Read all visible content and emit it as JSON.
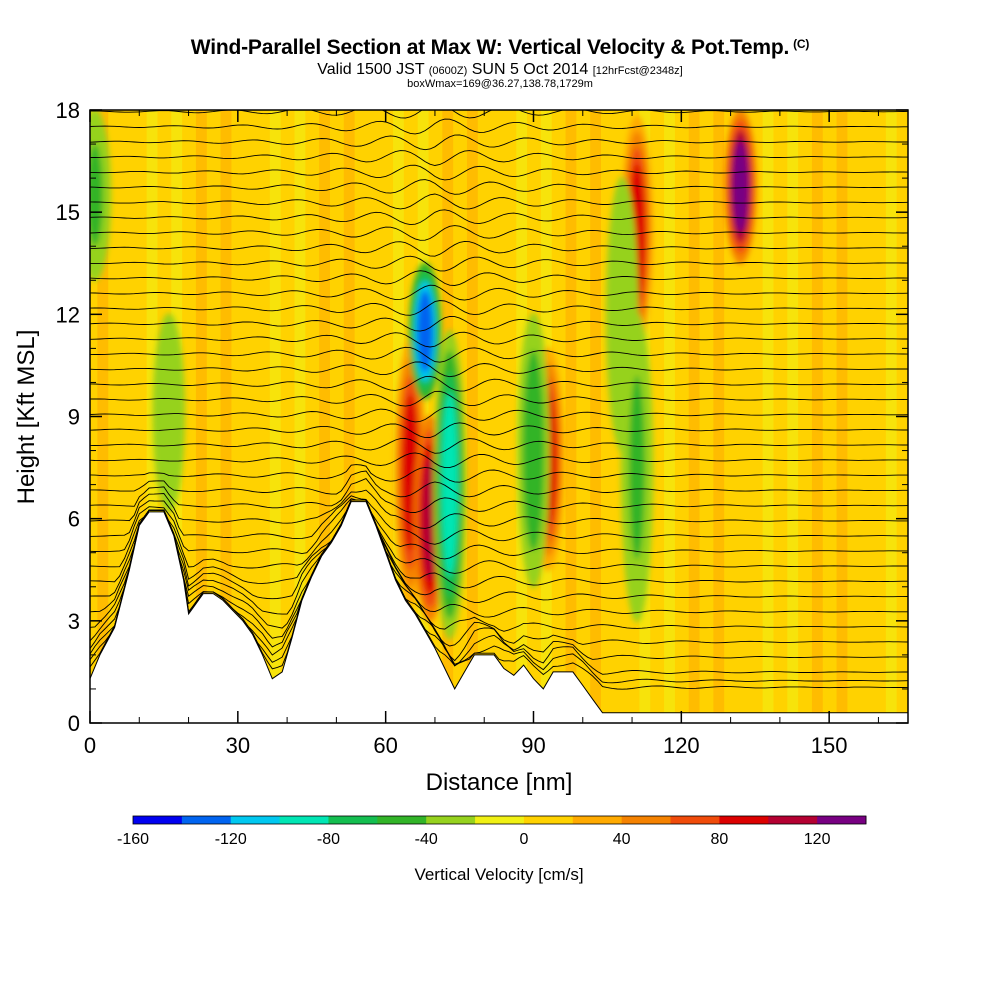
{
  "header": {
    "title": "Wind-Parallel Section at Max W: Vertical Velocity & Pot.Temp.",
    "title_mark": "(C)",
    "valid_main": "Valid 1500 JST",
    "valid_utc": "(0600Z)",
    "valid_date": "SUN 5 Oct 2014",
    "forecast": "[12hrFcst@2348z]",
    "box_info": "boxWmax=169@36.27,138.78,1729m"
  },
  "chart_data": {
    "type": "heatmap",
    "xlabel": "Distance [nm]",
    "ylabel": "Height [Kft MSL]",
    "xlim": [
      0,
      166
    ],
    "ylim": [
      0,
      18
    ],
    "x_ticks": [
      "0",
      "30",
      "60",
      "90",
      "120",
      "150"
    ],
    "y_ticks": [
      "0",
      "3",
      "6",
      "9",
      "12",
      "15",
      "18"
    ],
    "colorbar": {
      "title": "Vertical Velocity [cm/s]",
      "range": [
        -160,
        140
      ],
      "tick_labels": [
        "-160",
        "-120",
        "-80",
        "-40",
        "0",
        "40",
        "80",
        "120"
      ],
      "colors": [
        "#0000f0",
        "#0064f0",
        "#00c8f0",
        "#00e6b4",
        "#14be50",
        "#32b428",
        "#96d21e",
        "#f0f014",
        "#ffd200",
        "#ffaa00",
        "#f58200",
        "#f04b0a",
        "#dc0000",
        "#b40032",
        "#780082"
      ]
    },
    "terrain_kft": [
      [
        0,
        1.3
      ],
      [
        2,
        2.0
      ],
      [
        5,
        2.8
      ],
      [
        8,
        4.5
      ],
      [
        10,
        5.8
      ],
      [
        12,
        6.2
      ],
      [
        15,
        6.2
      ],
      [
        17,
        5.5
      ],
      [
        19,
        4.2
      ],
      [
        20,
        3.2
      ],
      [
        21,
        3.4
      ],
      [
        23,
        3.8
      ],
      [
        25,
        3.8
      ],
      [
        27,
        3.6
      ],
      [
        29,
        3.3
      ],
      [
        31,
        3.0
      ],
      [
        33,
        2.6
      ],
      [
        35,
        2.0
      ],
      [
        37,
        1.3
      ],
      [
        39,
        1.5
      ],
      [
        41,
        2.5
      ],
      [
        43,
        3.6
      ],
      [
        45,
        4.3
      ],
      [
        47,
        4.9
      ],
      [
        49,
        5.3
      ],
      [
        51,
        5.8
      ],
      [
        53,
        6.5
      ],
      [
        56,
        6.5
      ],
      [
        58,
        5.8
      ],
      [
        60,
        5.0
      ],
      [
        62,
        4.2
      ],
      [
        64,
        3.6
      ],
      [
        66,
        3.2
      ],
      [
        68,
        2.7
      ],
      [
        70,
        2.2
      ],
      [
        72,
        1.6
      ],
      [
        74,
        1.0
      ],
      [
        76,
        1.5
      ],
      [
        78,
        2.0
      ],
      [
        82,
        2.0
      ],
      [
        84,
        1.6
      ],
      [
        86,
        1.4
      ],
      [
        88,
        1.7
      ],
      [
        90,
        1.3
      ],
      [
        92,
        1.0
      ],
      [
        94,
        1.5
      ],
      [
        98,
        1.5
      ],
      [
        100,
        1.1
      ],
      [
        102,
        0.7
      ],
      [
        104,
        0.3
      ],
      [
        106,
        0.3
      ],
      [
        120,
        0.3
      ],
      [
        166,
        0.3
      ]
    ],
    "updrafts": [
      {
        "x": 65,
        "y0": 3.5,
        "y1": 11.2,
        "peak": 90
      },
      {
        "x": 69,
        "y0": 3.0,
        "y1": 9.0,
        "peak": 110
      },
      {
        "x": 93,
        "y0": 4.5,
        "y1": 11.0,
        "peak": 80
      },
      {
        "x": 111,
        "y0": 11.0,
        "y1": 17.8,
        "peak": 85
      },
      {
        "x": 132,
        "y0": 13.5,
        "y1": 18.0,
        "peak": 130
      }
    ],
    "downdrafts": [
      {
        "x": 68,
        "y0": 9.5,
        "y1": 13.5,
        "peak": -130
      },
      {
        "x": 73,
        "y0": 2.5,
        "y1": 11.5,
        "peak": -90
      },
      {
        "x": 90,
        "y0": 4.0,
        "y1": 12.0,
        "peak": -50
      },
      {
        "x": 108,
        "y0": 8.0,
        "y1": 16.0,
        "peak": -40
      },
      {
        "x": 111,
        "y0": 3.0,
        "y1": 12.0,
        "peak": -45
      },
      {
        "x": 16,
        "y0": 6.2,
        "y1": 12.0,
        "peak": -40
      },
      {
        "x": 1,
        "y0": 13.0,
        "y1": 18.0,
        "peak": -45
      }
    ],
    "isentrope_count": 40
  }
}
